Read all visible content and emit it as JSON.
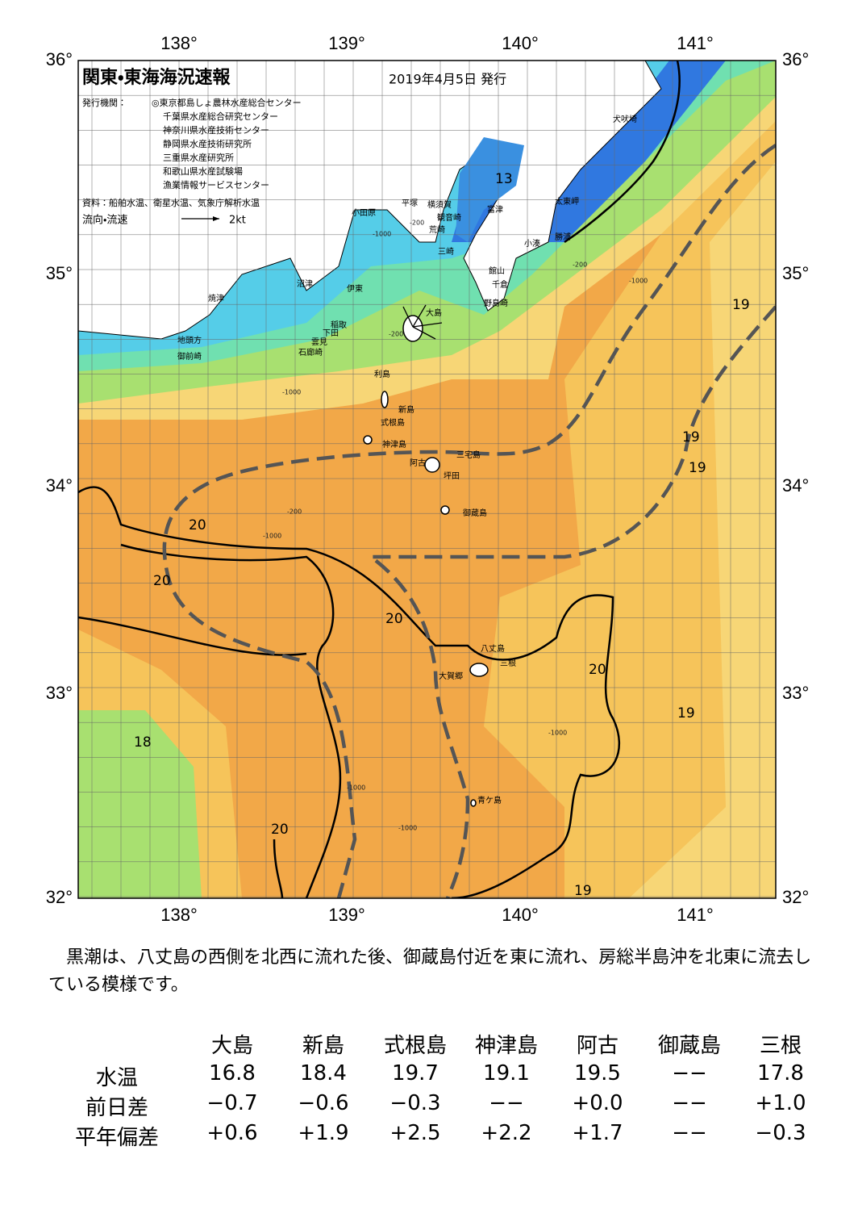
{
  "header": {
    "title": "関東・東海海況速報",
    "date": "2019年4月5日 発行"
  },
  "issuers": {
    "label": "発行機関：",
    "items": [
      "◎東京都島しょ農林水産総合センター",
      "千葉県水産総合研究センター",
      "神奈川県水産技術センター",
      "静岡県水産技術研究所",
      "三重県水産研究所",
      "和歌山県水産試験場",
      "漁業情報サービスセンター"
    ]
  },
  "source": "資料：船舶水温、衛星水温、気象庁解析水温",
  "legend": {
    "label": "流向・流速",
    "speed": "2kt"
  },
  "axes": {
    "lon": [
      "138°",
      "139°",
      "140°",
      "141°"
    ],
    "lat": [
      "36°",
      "35°",
      "34°",
      "33°",
      "32°"
    ]
  },
  "places": [
    "犬吠埼",
    "太東岬",
    "勝浦",
    "小湊",
    "富津",
    "横須賀",
    "観音崎",
    "荒崎",
    "三崎",
    "館山",
    "千倉",
    "野島崎",
    "平塚",
    "小田原",
    "沼津",
    "伊東",
    "焼津",
    "稲取",
    "下田",
    "雲見",
    "石廊崎",
    "地頭方",
    "御前崎",
    "大島",
    "利島",
    "新島",
    "式根島",
    "神津島",
    "三宅島",
    "阿古",
    "坪田",
    "御蔵島",
    "八丈島",
    "三根",
    "大賀郷",
    "青ケ島"
  ],
  "contour_labels": [
    "13",
    "20",
    "20",
    "20",
    "20",
    "19",
    "19",
    "19",
    "19",
    "19",
    "18",
    "20"
  ],
  "depth_labels": [
    "-200",
    "-1000",
    "-200",
    "-1000",
    "-200",
    "-1000",
    "-200",
    "-1000",
    "-1000",
    "-1000",
    "-1000"
  ],
  "summary": "黒潮は、八丈島の西側を北西に流れた後、御蔵島付近を東に流れ、房総半島沖を北東に流去している模様です。",
  "table": {
    "columns": [
      "大島",
      "新島",
      "式根島",
      "神津島",
      "阿古",
      "御蔵島",
      "三根"
    ],
    "rows": [
      {
        "label": "水温",
        "values": [
          "16.8",
          "18.4",
          "19.7",
          "19.1",
          "19.5",
          "−−",
          "17.8"
        ]
      },
      {
        "label": "前日差",
        "values": [
          "−0.7",
          "−0.6",
          "−0.3",
          "−−",
          "+0.0",
          "−−",
          "+1.0"
        ]
      },
      {
        "label": "平年偏差",
        "values": [
          "+0.6",
          "+1.9",
          "+2.5",
          "+2.2",
          "+1.7",
          "−−",
          "−0.3"
        ]
      }
    ]
  }
}
